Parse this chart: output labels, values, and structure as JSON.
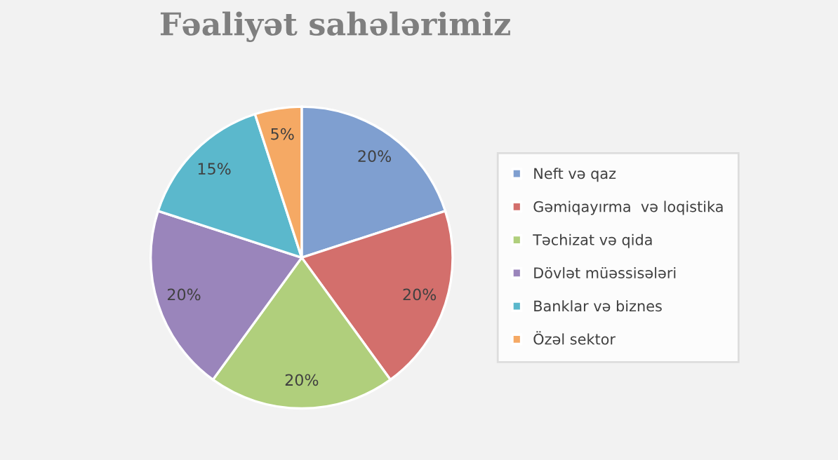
{
  "chart_data": {
    "type": "pie",
    "title": "Fəaliyət sahələrimiz",
    "categories": [
      "Neft və qaz",
      "Gəmiqayırma  və loqistika",
      "Təchizat və qida",
      "Dövlət müəssisələri",
      "Banklar və biznes",
      "Özəl sektor"
    ],
    "values": [
      20,
      20,
      20,
      20,
      15,
      5
    ],
    "colors": [
      "#7f9fd0",
      "#d36f6c",
      "#b0cf7c",
      "#9a85bb",
      "#5bb8cc",
      "#f5a964"
    ],
    "value_labels": [
      "20%",
      "20%",
      "20%",
      "20%",
      "15%",
      "5%"
    ],
    "legend": "right"
  }
}
